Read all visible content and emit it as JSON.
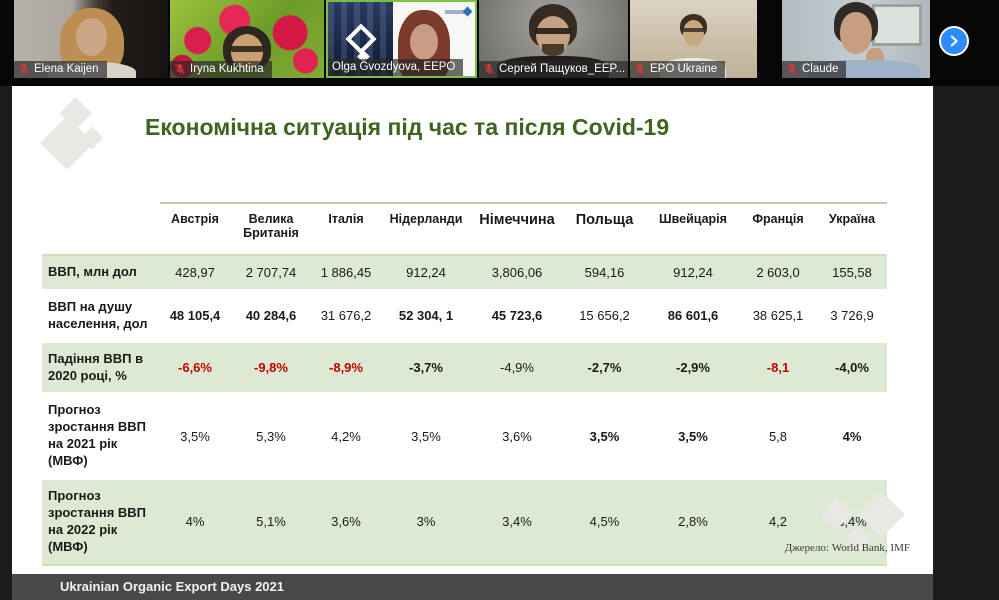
{
  "meeting": {
    "participants": [
      {
        "name": "Elena Kaijen",
        "muted": true
      },
      {
        "name": "Iryna Kukhtina",
        "muted": true
      },
      {
        "name": "Olga Gvozdyova, EEPO",
        "muted": false,
        "active_speaker": true
      },
      {
        "name": "Сергей Пащуков_EEP...",
        "muted": true
      },
      {
        "name": "EPO Ukraine",
        "muted": true
      },
      {
        "name": "Claude",
        "muted": true
      }
    ],
    "icons": {
      "muted_mic": "muted-mic-icon",
      "next": "chevron-right-icon"
    },
    "colors": {
      "active_speaker_border": "#79c143",
      "next_button_blue": "#2e8bff",
      "muted_red": "#e23b3b"
    }
  },
  "slide": {
    "title": "Економічна ситуація під час та після Covid-19",
    "source": "Джерело: World Bank, IMF",
    "footer": "Ukrainian Organic Export Days 2021",
    "colors": {
      "title_green": "#3e6420",
      "row_green": "#dde9d2",
      "negative_red": "#c00000"
    }
  },
  "chart_data": {
    "type": "table",
    "headers": [
      "Австрія",
      "Велика Британія",
      "Італія",
      "Нідерланди",
      "Німеччина",
      "Польща",
      "Швейцарія",
      "Франція",
      "Україна"
    ],
    "header_large": [
      4,
      5
    ],
    "rows": [
      {
        "label": "ВВП, млн дол",
        "values": [
          "428,97",
          "2 707,74",
          "1 886,45",
          "912,24",
          "3,806,06",
          "594,16",
          "912,24",
          "2 603,0",
          "155,58"
        ],
        "bold": [],
        "red": []
      },
      {
        "label": "ВВП на душу населення, дол",
        "values": [
          "48 105,4",
          "40 284,6",
          "31 676,2",
          "52 304, 1",
          "45 723,6",
          "15 656,2",
          "86 601,6",
          "38 625,1",
          "3 726,9"
        ],
        "bold": [
          0,
          1,
          3,
          4,
          6
        ],
        "red": []
      },
      {
        "label": "Падіння ВВП в 2020 році, %",
        "values": [
          "-6,6%",
          "-9,8%",
          "-8,9%",
          "-3,7%",
          "-4,9%",
          "-2,7%",
          "-2,9%",
          "-8,1",
          "-4,0%"
        ],
        "bold": [
          0,
          1,
          2,
          3,
          5,
          6,
          7,
          8
        ],
        "red": [
          0,
          1,
          2,
          7
        ]
      },
      {
        "label": "Прогноз зростання ВВП на 2021 рік (МВФ)",
        "values": [
          "3,5%",
          "5,3%",
          "4,2%",
          "3,5%",
          "3,6%",
          "3,5%",
          "3,5%",
          "5,8",
          "4%"
        ],
        "bold": [
          5,
          6,
          8
        ],
        "red": []
      },
      {
        "label": "Прогноз зростання ВВП на 2022 рік (МВФ)",
        "values": [
          "4%",
          "5,1%",
          "3,6%",
          "3%",
          "3,4%",
          "4,5%",
          "2,8%",
          "4,2",
          "3,4%"
        ],
        "bold": [],
        "red": []
      }
    ]
  }
}
